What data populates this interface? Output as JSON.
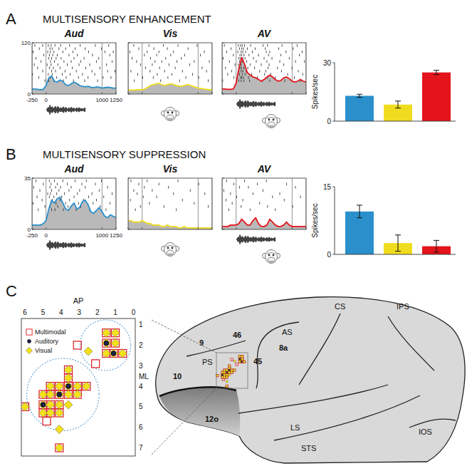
{
  "panels": [
    {
      "letter": "A",
      "title": "MULTISENSORY ENHANCEMENT"
    },
    {
      "letter": "B",
      "title": "MULTISENSORY SUPPRESSION"
    },
    {
      "letter": "C"
    }
  ],
  "chart_data": [
    {
      "type": "line",
      "title": "Aud",
      "x": [
        -250,
        -200,
        -150,
        -100,
        -50,
        0,
        50,
        100,
        150,
        200,
        250,
        300,
        350,
        400,
        450,
        500,
        550,
        600,
        650,
        700,
        750,
        800,
        850,
        900,
        950,
        1000,
        1050,
        1100,
        1150,
        1200,
        1250
      ],
      "xlim": [
        -250,
        1250
      ],
      "xticks": [
        -250,
        0,
        1000,
        1250
      ],
      "ylim": [
        0,
        120
      ],
      "yticks": [
        0,
        120
      ],
      "grid": true,
      "series": [
        {
          "color": "#2a8fcb",
          "values": [
            12,
            12,
            11,
            10,
            11,
            20,
            38,
            42,
            30,
            28,
            33,
            30,
            22,
            20,
            24,
            28,
            25,
            20,
            18,
            17,
            18,
            16,
            15,
            17,
            16,
            14,
            15,
            16,
            15,
            14,
            14
          ]
        }
      ],
      "raster": [
        [
          -200,
          -60,
          40,
          90,
          160,
          260,
          420,
          610,
          880,
          1120
        ],
        [
          -120,
          70,
          110,
          230,
          350,
          520,
          700,
          990
        ],
        [
          -230,
          30,
          80,
          140,
          300,
          480,
          760,
          1050,
          1200
        ],
        [
          -40,
          60,
          120,
          200,
          410,
          560,
          830,
          1140
        ],
        [
          -180,
          50,
          100,
          180,
          270,
          500,
          680,
          940
        ],
        [
          -90,
          80,
          150,
          320,
          450,
          620,
          900,
          1180
        ],
        [
          -210,
          20,
          90,
          210,
          380,
          590,
          780,
          1080
        ],
        [
          -150,
          60,
          130,
          250,
          470,
          710,
          960
        ],
        [
          -60,
          100,
          170,
          340,
          540,
          820,
          1100,
          1230
        ],
        [
          -240,
          40,
          110,
          290,
          430,
          650,
          870
        ],
        [
          -130,
          70,
          190,
          360,
          580,
          750,
          1020,
          1160
        ],
        [
          -20,
          50,
          140,
          310,
          490,
          690,
          920
        ]
      ]
    },
    {
      "type": "line",
      "title": "Vis",
      "x": [
        -250,
        -200,
        -150,
        -100,
        -50,
        0,
        50,
        100,
        150,
        200,
        250,
        300,
        350,
        400,
        450,
        500,
        550,
        600,
        650,
        700,
        750,
        800,
        850,
        900,
        950,
        1000,
        1050,
        1100,
        1150,
        1200,
        1250
      ],
      "xlim": [
        -250,
        1250
      ],
      "xticks": [
        -250,
        0,
        1000,
        1250
      ],
      "ylim": [
        0,
        120
      ],
      "yticks": [
        0,
        120
      ],
      "grid": true,
      "tick_labels": false,
      "series": [
        {
          "color": "#f0dc1e",
          "values": [
            10,
            9,
            9,
            10,
            10,
            10,
            12,
            16,
            20,
            22,
            24,
            25,
            22,
            20,
            22,
            24,
            23,
            20,
            19,
            18,
            20,
            22,
            21,
            18,
            16,
            14,
            13,
            12,
            11,
            10,
            10
          ]
        }
      ],
      "raster": [
        [
          -150,
          120,
          380,
          640,
          980
        ],
        [
          -60,
          210,
          450,
          820
        ],
        [
          -220,
          90,
          300,
          560,
          1110
        ],
        [
          40,
          260,
          510,
          760,
          1040
        ],
        [
          -180,
          150,
          420,
          700
        ],
        [
          -100,
          230,
          350,
          620,
          930,
          1200
        ],
        [
          -30,
          180,
          480,
          850
        ],
        [
          60,
          310,
          590,
          1070
        ],
        [
          -200,
          140,
          400,
          720,
          1150
        ],
        [
          -80,
          270,
          530,
          900
        ],
        [
          10,
          200,
          460,
          780,
          1010
        ],
        [
          -140,
          330,
          670,
          1180
        ]
      ]
    },
    {
      "type": "line",
      "title": "AV",
      "x": [
        -250,
        -200,
        -150,
        -100,
        -50,
        0,
        50,
        100,
        150,
        200,
        250,
        300,
        350,
        400,
        450,
        500,
        550,
        600,
        650,
        700,
        750,
        800,
        850,
        900,
        950,
        1000,
        1050,
        1100,
        1150,
        1200,
        1250
      ],
      "xlim": [
        -250,
        1250
      ],
      "xticks": [
        -250,
        0,
        1000,
        1250
      ],
      "ylim": [
        0,
        120
      ],
      "yticks": [
        0,
        120
      ],
      "grid": true,
      "tick_labels": false,
      "series": [
        {
          "color": "#e3141b",
          "values": [
            12,
            12,
            11,
            11,
            12,
            25,
            60,
            85,
            70,
            50,
            45,
            40,
            38,
            34,
            30,
            34,
            40,
            44,
            40,
            34,
            30,
            32,
            38,
            40,
            36,
            30,
            28,
            30,
            34,
            30,
            28
          ]
        }
      ],
      "raster": [
        [
          -210,
          40,
          80,
          110,
          150,
          260,
          480,
          560,
          820,
          1090
        ],
        [
          -90,
          60,
          100,
          130,
          200,
          340,
          520,
          760,
          1020
        ],
        [
          -170,
          30,
          90,
          120,
          170,
          290,
          540,
          600,
          890,
          1180
        ],
        [
          -50,
          70,
          100,
          140,
          230,
          400,
          580,
          800,
          1130
        ],
        [
          -230,
          50,
          80,
          120,
          160,
          310,
          500,
          640,
          950
        ],
        [
          -120,
          60,
          110,
          130,
          190,
          360,
          550,
          780,
          1060,
          1220
        ],
        [
          -20,
          40,
          90,
          150,
          250,
          450,
          590,
          850
        ],
        [
          -190,
          70,
          100,
          140,
          210,
          330,
          570,
          740,
          1000
        ],
        [
          -80,
          50,
          90,
          120,
          180,
          420,
          530,
          810,
          1110
        ],
        [
          -150,
          60,
          110,
          160,
          280,
          510,
          620,
          920,
          1190
        ],
        [
          -40,
          80,
          100,
          130,
          220,
          380,
          560,
          700,
          1040
        ],
        [
          -240,
          50,
          90,
          140,
          240,
          470,
          600,
          870,
          1150
        ]
      ]
    },
    {
      "type": "bar",
      "y_label": "Spikes/sec",
      "values": [
        13,
        8.5,
        25
      ],
      "errors": [
        0.8,
        1.8,
        1.1
      ],
      "colors": [
        "#2a8fcb",
        "#f0dc1e",
        "#e3141b"
      ],
      "ylim": [
        0,
        30
      ],
      "yticks": [
        0,
        30
      ]
    },
    {
      "type": "line",
      "title": "Aud",
      "x": [
        -250,
        -200,
        -150,
        -100,
        -50,
        0,
        50,
        100,
        150,
        200,
        250,
        300,
        350,
        400,
        450,
        500,
        550,
        600,
        650,
        700,
        750,
        800,
        850,
        900,
        950,
        1000,
        1050,
        1100,
        1150,
        1200,
        1250
      ],
      "xlim": [
        -250,
        1250
      ],
      "xticks": [
        -250,
        0,
        1000,
        1250
      ],
      "ylim": [
        0,
        35
      ],
      "yticks": [
        0,
        35
      ],
      "grid": true,
      "series": [
        {
          "color": "#2a8fcb",
          "values": [
            3,
            3,
            3,
            3,
            4,
            6,
            14,
            20,
            18,
            21,
            22,
            18,
            14,
            13,
            16,
            18,
            14,
            15,
            19,
            20,
            17,
            12,
            11,
            13,
            15,
            12,
            9,
            8,
            10,
            9,
            8
          ]
        }
      ],
      "raster": [
        [
          -180,
          60,
          150,
          300,
          520,
          720,
          990
        ],
        [
          -50,
          90,
          200,
          380,
          640,
          880
        ],
        [
          -220,
          70,
          170,
          260,
          450,
          700,
          1100
        ],
        [
          -110,
          100,
          230,
          410,
          600,
          950
        ],
        [
          30,
          80,
          190,
          330,
          560,
          820,
          1180
        ],
        [
          -160,
          60,
          140,
          280,
          500,
          760,
          1030
        ],
        [
          -70,
          110,
          250,
          420,
          670,
          900
        ],
        [
          -230,
          90,
          180,
          350,
          580,
          840,
          1140
        ],
        [
          -20,
          70,
          210,
          390,
          620,
          970
        ],
        [
          -140,
          100,
          160,
          310,
          540,
          780,
          1070
        ]
      ]
    },
    {
      "type": "line",
      "title": "Vis",
      "x": [
        -250,
        -200,
        -150,
        -100,
        -50,
        0,
        50,
        100,
        150,
        200,
        250,
        300,
        350,
        400,
        450,
        500,
        550,
        600,
        650,
        700,
        750,
        800,
        850,
        900,
        950,
        1000,
        1050,
        1100,
        1150,
        1200,
        1250
      ],
      "xlim": [
        -250,
        1250
      ],
      "xticks": [
        -250,
        0,
        1000,
        1250
      ],
      "ylim": [
        0,
        35
      ],
      "yticks": [
        0,
        35
      ],
      "grid": true,
      "tick_labels": false,
      "series": [
        {
          "color": "#f0dc1e",
          "values": [
            6,
            6,
            5,
            5,
            5,
            6,
            5,
            4,
            4,
            3,
            3,
            3,
            2,
            2,
            3,
            2,
            2,
            2,
            1,
            1,
            2,
            1,
            1,
            1,
            1,
            1,
            1,
            1,
            1,
            1,
            1
          ]
        }
      ],
      "raster": [
        [
          -200,
          90,
          640
        ],
        [
          -60,
          300,
          1010
        ],
        [
          40,
          470
        ],
        [
          -150,
          180,
          860
        ],
        [
          -90,
          560,
          1120
        ],
        [
          20,
          260
        ],
        [
          -210,
          720
        ],
        [
          130,
          930
        ],
        [
          -30,
          390,
          1180
        ],
        [
          -120,
          610
        ]
      ]
    },
    {
      "type": "line",
      "title": "AV",
      "x": [
        -250,
        -200,
        -150,
        -100,
        -50,
        0,
        50,
        100,
        150,
        200,
        250,
        300,
        350,
        400,
        450,
        500,
        550,
        600,
        650,
        700,
        750,
        800,
        850,
        900,
        950,
        1000,
        1050,
        1100,
        1150,
        1200,
        1250
      ],
      "xlim": [
        -250,
        1250
      ],
      "xticks": [
        -250,
        0,
        1000,
        1250
      ],
      "ylim": [
        0,
        35
      ],
      "yticks": [
        0,
        35
      ],
      "grid": true,
      "tick_labels": false,
      "series": [
        {
          "color": "#e3141b",
          "values": [
            2,
            2,
            2,
            3,
            3,
            3,
            4,
            7,
            5,
            3,
            3,
            6,
            8,
            4,
            2,
            2,
            3,
            7,
            5,
            3,
            2,
            2,
            3,
            5,
            3,
            2,
            2,
            2,
            2,
            2,
            2
          ]
        }
      ],
      "raster": [
        [
          -170,
          150,
          540
        ],
        [
          -40,
          380,
          900
        ],
        [
          60,
          220,
          1060
        ],
        [
          -220,
          480
        ],
        [
          -100,
          300,
          780
        ],
        [
          10,
          650,
          1150
        ],
        [
          -180,
          120,
          860
        ],
        [
          -70,
          420
        ],
        [
          90,
          560,
          1010
        ],
        [
          -130,
          250,
          700
        ]
      ]
    },
    {
      "type": "bar",
      "y_label": "Spikes/sec",
      "values": [
        9.5,
        2.5,
        1.8
      ],
      "errors": [
        1.4,
        1.8,
        1.3
      ],
      "colors": [
        "#2a8fcb",
        "#f0dc1e",
        "#e3141b"
      ],
      "ylim": [
        0,
        15
      ],
      "yticks": [
        0,
        15
      ]
    },
    {
      "type": "scatter",
      "x_label": "AP",
      "y_label": "ML",
      "xlim": [
        6.2,
        -0.1
      ],
      "xticks": [
        6,
        5,
        4,
        3,
        2,
        1,
        0
      ],
      "ylim": [
        7.4,
        0.7
      ],
      "yticks": [
        1,
        2,
        3,
        4,
        5,
        6,
        7
      ],
      "legend": "top-left",
      "series": [
        {
          "name": "Multimodal",
          "marker": "square",
          "color": "#e0262b",
          "x": [
            1.5,
            1.0,
            3.1,
            1.5,
            1.0,
            2.1,
            1.5,
            1.1,
            0.6,
            3.6,
            3.6,
            4.6,
            4.1,
            3.6,
            3.1,
            2.6,
            5.0,
            4.6,
            4.1,
            3.6,
            3.1,
            5.0,
            4.6,
            4.1,
            6.0,
            5.0,
            4.6,
            4.1,
            4.8,
            4.1
          ],
          "values": [
            1.4,
            1.4,
            2.0,
            1.9,
            1.9,
            2.9,
            2.4,
            2.4,
            2.4,
            3.2,
            3.6,
            4.0,
            4.0,
            4.0,
            4.0,
            4.0,
            4.4,
            4.4,
            4.4,
            4.4,
            4.4,
            4.9,
            4.9,
            4.9,
            5.0,
            5.3,
            5.3,
            5.3,
            5.7,
            7.0
          ]
        },
        {
          "name": "Auditory",
          "marker": "circle",
          "color": "#1c2452",
          "x": [
            1.5,
            1.1,
            3.6,
            4.1,
            5.0
          ],
          "values": [
            1.9,
            2.4,
            4.0,
            4.4,
            4.9
          ]
        },
        {
          "name": "Visual",
          "marker": "diamond",
          "color": "#f5e11a",
          "x": [
            1.5,
            1.0,
            1.5,
            1.0,
            2.5,
            1.5,
            1.1,
            0.6,
            3.6,
            3.6,
            4.6,
            4.1,
            3.6,
            3.1,
            2.6,
            5.0,
            4.6,
            4.1,
            3.6,
            3.1,
            5.0,
            4.6,
            4.1,
            3.6,
            6.0,
            5.0,
            4.6,
            4.1,
            4.1,
            4.1
          ],
          "values": [
            1.4,
            1.4,
            1.9,
            1.9,
            2.3,
            2.4,
            2.4,
            2.4,
            3.2,
            3.6,
            4.0,
            4.0,
            4.0,
            4.0,
            4.0,
            4.4,
            4.4,
            4.4,
            4.4,
            4.4,
            4.9,
            4.9,
            4.9,
            4.9,
            5.0,
            5.3,
            5.3,
            5.3,
            6.1,
            7.0
          ]
        }
      ],
      "clusters": [
        {
          "x": 1.55,
          "y": 2.0,
          "r": 1.4
        },
        {
          "x": 3.9,
          "y": 4.4,
          "r": 2.0
        }
      ]
    }
  ],
  "brain": {
    "labels": [
      "CS",
      "IPS",
      "AS",
      "8a",
      "9",
      "46",
      "PS",
      "45",
      "10",
      "12o",
      "LS",
      "STS",
      "IOS"
    ]
  }
}
